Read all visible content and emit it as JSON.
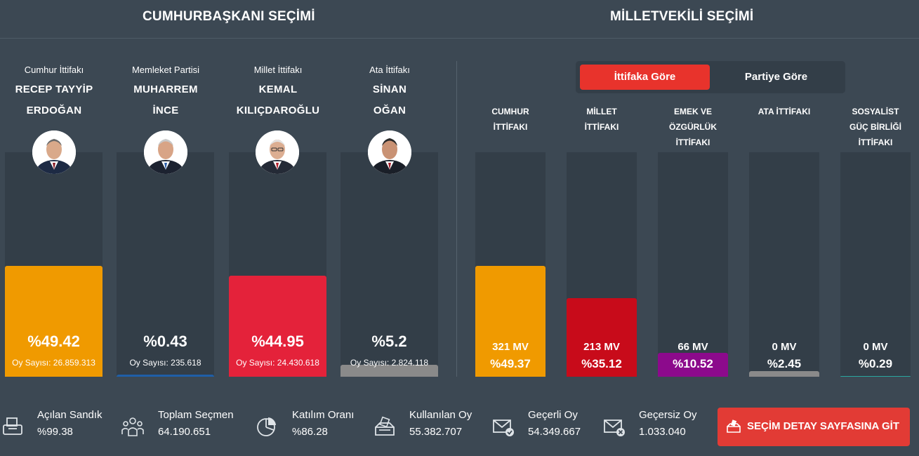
{
  "presidential": {
    "title": "CUMHURBAŞKANI SEÇİMİ",
    "candidates": [
      {
        "party": "Cumhur İttifakı",
        "name_line1": "RECEP TAYYİP",
        "name_line2": "ERDOĞAN",
        "percent_label": "%49.42",
        "votes_label": "Oy Sayısı: 26.859.313",
        "share": 0.4942,
        "color": "#f09a00"
      },
      {
        "party": "Memleket Partisi",
        "name_line1": "MUHARREM",
        "name_line2": "İNCE",
        "percent_label": "%0.43",
        "votes_label": "Oy Sayısı: 235.618",
        "share": 0.0043,
        "color": "#1f5fa8"
      },
      {
        "party": "Millet İttifakı",
        "name_line1": "KEMAL",
        "name_line2": "KILIÇDAROĞLU",
        "percent_label": "%44.95",
        "votes_label": "Oy Sayısı: 24.430.618",
        "share": 0.4495,
        "color": "#e4223a"
      },
      {
        "party": "Ata İttifakı",
        "name_line1": "SİNAN",
        "name_line2": "OĞAN",
        "percent_label": "%5.2",
        "votes_label": "Oy Sayısı: 2.824.118",
        "share": 0.052,
        "color": "#8a8a8a"
      }
    ]
  },
  "parliament": {
    "title": "MİLLETVEKİLİ SEÇİMİ",
    "tabs": [
      {
        "label": "İttifaka Göre",
        "active": true
      },
      {
        "label": "Partiye Göre",
        "active": false
      }
    ],
    "alliances": [
      {
        "name_lines": [
          "CUMHUR",
          "İTTİFAKI"
        ],
        "mv_label": "321 MV",
        "percent_label": "%49.37",
        "share": 0.4937,
        "color": "#f09a00"
      },
      {
        "name_lines": [
          "MİLLET",
          "İTTİFAKI"
        ],
        "mv_label": "213 MV",
        "percent_label": "%35.12",
        "share": 0.3512,
        "color": "#c80b1a"
      },
      {
        "name_lines": [
          "EMEK VE",
          "ÖZGÜRLÜK",
          "İTTİFAKI"
        ],
        "mv_label": "66 MV",
        "percent_label": "%10.52",
        "share": 0.1052,
        "color": "#8c0a8c"
      },
      {
        "name_lines": [
          "ATA İTTİFAKI"
        ],
        "mv_label": "0 MV",
        "percent_label": "%2.45",
        "share": 0.0245,
        "color": "#8a8a8a"
      },
      {
        "name_lines": [
          "SOSYALİST",
          "GÜÇ BİRLİĞİ",
          "İTTİFAKI"
        ],
        "mv_label": "0 MV",
        "percent_label": "%0.29",
        "share": 0.0029,
        "color": "#2aa8a0"
      }
    ]
  },
  "stats": [
    {
      "icon": "printer-ballot-icon",
      "label": "Açılan Sandık",
      "value": "%99.38"
    },
    {
      "icon": "people-icon",
      "label": "Toplam Seçmen",
      "value": "64.190.651"
    },
    {
      "icon": "pie-chart-icon",
      "label": "Katılım Oranı",
      "value": "%86.28"
    },
    {
      "icon": "ballot-box-icon",
      "label": "Kullanılan Oy",
      "value": "55.382.707"
    },
    {
      "icon": "envelope-check-icon",
      "label": "Geçerli Oy",
      "value": "54.349.667"
    },
    {
      "icon": "envelope-x-icon",
      "label": "Geçersiz Oy",
      "value": "1.033.040"
    }
  ],
  "detail_button": {
    "label": "SEÇİM DETAY SAYFASINA GİT",
    "icon": "ballot-box-icon",
    "color": "#e23b35"
  }
}
